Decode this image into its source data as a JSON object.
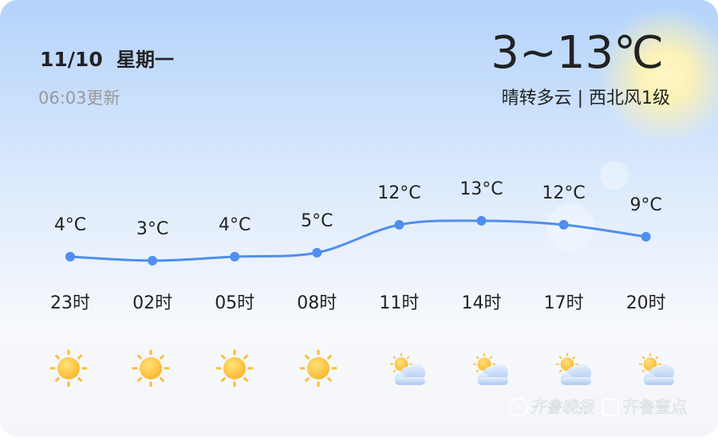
{
  "header": {
    "date": "11/10",
    "weekday": "星期一",
    "updated": "06:03更新",
    "temp_range": "3~13℃",
    "weather": "晴转多云 | 西北风1级"
  },
  "chart_data": {
    "type": "line",
    "categories": [
      "23时",
      "02时",
      "05时",
      "08时",
      "11时",
      "14时",
      "17时",
      "20时"
    ],
    "values": [
      4,
      3,
      4,
      5,
      12,
      13,
      12,
      9
    ],
    "value_labels": [
      "4°C",
      "3°C",
      "4°C",
      "5°C",
      "12°C",
      "13°C",
      "12°C",
      "9°C"
    ],
    "color": "#4f8ef0"
  },
  "watermark": {
    "paper": "齐鲁晚报",
    "app": "齐鲁壹点"
  }
}
